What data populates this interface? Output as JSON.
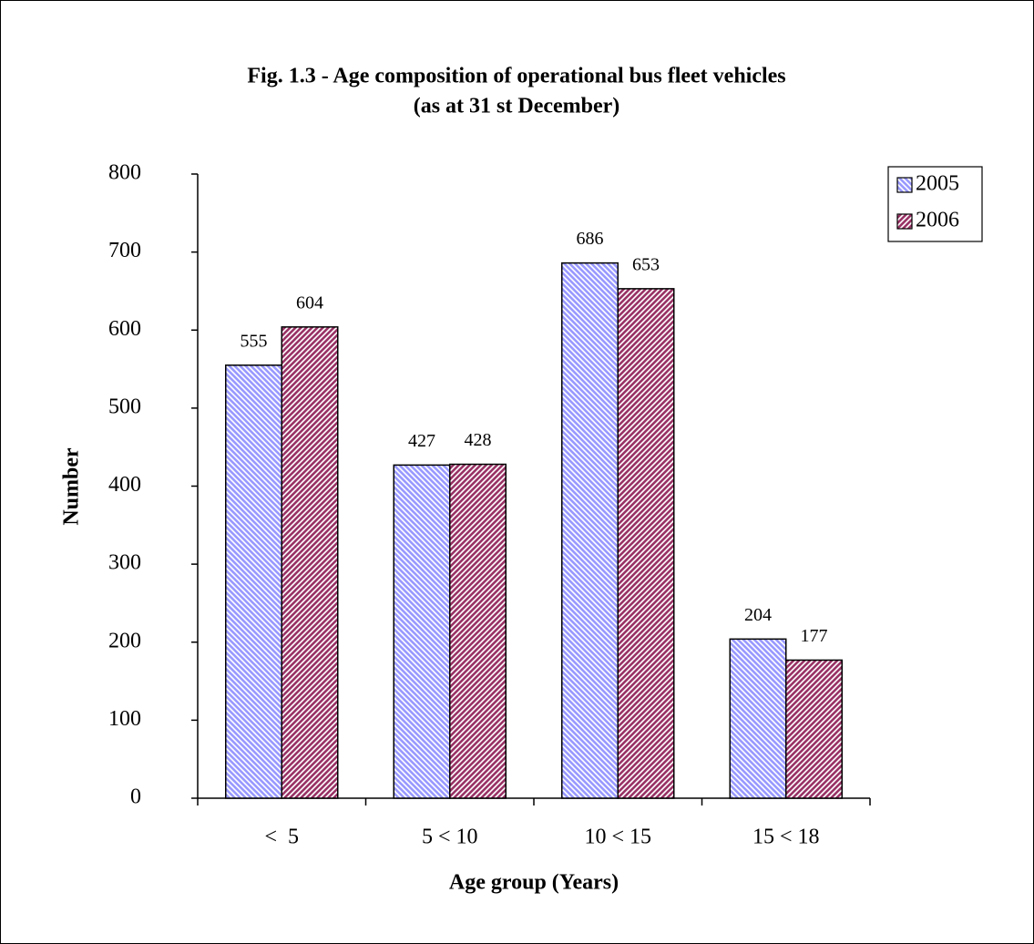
{
  "chart_data": {
    "type": "bar",
    "title": "Fig. 1.3 - Age composition of operational bus fleet vehicles",
    "subtitle": "(as at 31 st December)",
    "x_label": "Age group (Years)",
    "y_label": "Number",
    "categories": [
      "<  5",
      "5 < 10",
      "10 < 15",
      "15 < 18"
    ],
    "series": [
      {
        "name": "2005",
        "color": "#9999ff",
        "values": [
          555,
          427,
          686,
          204
        ]
      },
      {
        "name": "2006",
        "color": "#993366",
        "values": [
          604,
          428,
          653,
          177
        ]
      }
    ],
    "ylim": [
      0,
      800
    ],
    "yticks": [
      0,
      100,
      200,
      300,
      400,
      500,
      600,
      700,
      800
    ],
    "legend": "top-right"
  }
}
